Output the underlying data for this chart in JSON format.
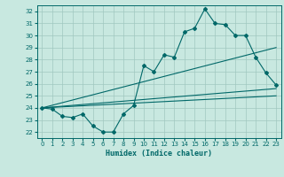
{
  "title": "",
  "xlabel": "Humidex (Indice chaleur)",
  "ylabel": "",
  "bg_color": "#c8e8e0",
  "grid_color": "#a0c8c0",
  "line_color": "#006868",
  "xlim": [
    -0.5,
    23.5
  ],
  "ylim": [
    21.5,
    32.5
  ],
  "yticks": [
    22,
    23,
    24,
    25,
    26,
    27,
    28,
    29,
    30,
    31,
    32
  ],
  "xticks": [
    0,
    1,
    2,
    3,
    4,
    5,
    6,
    7,
    8,
    9,
    10,
    11,
    12,
    13,
    14,
    15,
    16,
    17,
    18,
    19,
    20,
    21,
    22,
    23
  ],
  "series1_x": [
    0,
    1,
    2,
    3,
    4,
    5,
    6,
    7,
    8,
    9,
    10,
    11,
    12,
    13,
    14,
    15,
    16,
    17,
    18,
    19,
    20,
    21,
    22,
    23
  ],
  "series1_y": [
    24.0,
    23.9,
    23.3,
    23.2,
    23.5,
    22.5,
    22.0,
    22.0,
    23.5,
    24.2,
    27.5,
    27.0,
    28.4,
    28.2,
    30.3,
    30.6,
    32.2,
    31.0,
    30.9,
    30.0,
    30.0,
    28.2,
    26.9,
    25.9
  ],
  "series2_x": [
    0,
    23
  ],
  "series2_y": [
    24.0,
    29.0
  ],
  "series3_x": [
    0,
    23
  ],
  "series3_y": [
    24.0,
    25.6
  ],
  "series4_x": [
    0,
    23
  ],
  "series4_y": [
    24.0,
    25.0
  ]
}
